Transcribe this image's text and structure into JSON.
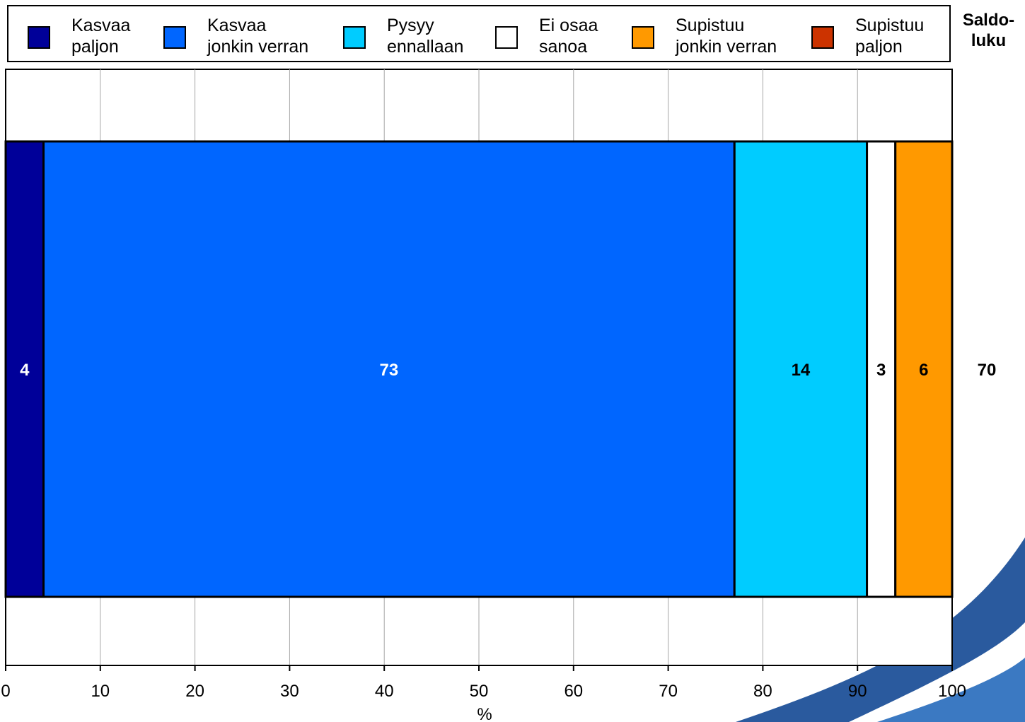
{
  "chart_data": {
    "type": "bar",
    "orientation": "horizontal",
    "stacked": true,
    "xlabel": "%",
    "xlim": [
      0,
      100
    ],
    "xticks": [
      0,
      10,
      20,
      30,
      40,
      50,
      60,
      70,
      80,
      90,
      100
    ],
    "grid": true,
    "legend_position": "top",
    "series": [
      {
        "name": "Kasvaa\npaljon",
        "values": [
          4
        ],
        "color": "#000099",
        "label_color": "#ffffff"
      },
      {
        "name": "Kasvaa\njonkin verran",
        "values": [
          73
        ],
        "color": "#0066ff",
        "label_color": "#ffffff"
      },
      {
        "name": "Pysyy\nennallaan",
        "values": [
          14
        ],
        "color": "#00ccff",
        "label_color": "#000000"
      },
      {
        "name": "Ei osaa\nsanoa",
        "values": [
          3
        ],
        "color": "#ffffff",
        "label_color": "#000000"
      },
      {
        "name": "Supistuu\njonkin verran",
        "values": [
          6
        ],
        "color": "#ff9900",
        "label_color": "#000000"
      },
      {
        "name": "Supistuu\npaljon",
        "values": [
          0
        ],
        "color": "#cc3300",
        "label_color": "#ffffff"
      }
    ],
    "saldo_header": "Saldo-\nluku",
    "saldo_values": [
      "70"
    ]
  }
}
